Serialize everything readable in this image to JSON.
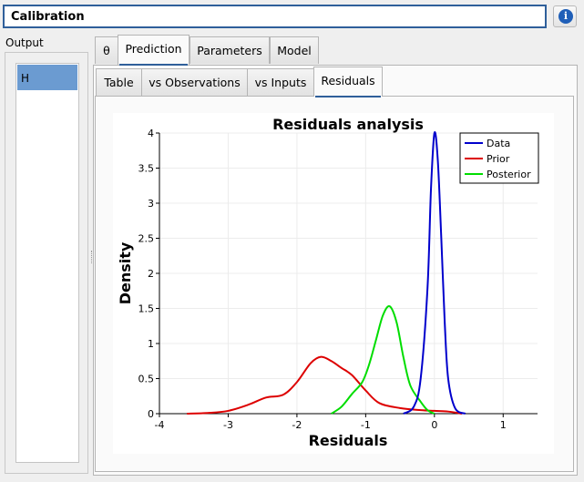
{
  "header": {
    "title": "Calibration",
    "info_icon": "info-icon",
    "info_glyph": "i"
  },
  "output": {
    "label": "Output",
    "items": [
      "H"
    ]
  },
  "top_tabs": [
    "θ",
    "Prediction",
    "Parameters",
    "Model"
  ],
  "sub_tabs": [
    "Table",
    "vs Observations",
    "vs Inputs",
    "Residuals"
  ],
  "chart_data": {
    "type": "line",
    "title": "Residuals analysis",
    "xlabel": "Residuals",
    "ylabel": "Density",
    "xlim": [
      -4,
      1.5
    ],
    "ylim": [
      0,
      4
    ],
    "x_ticks": [
      "-4",
      "-3",
      "-2",
      "-1",
      "0",
      "1"
    ],
    "y_ticks": [
      "0",
      "0.5",
      "1",
      "1.5",
      "2",
      "2.5",
      "3",
      "3.5",
      "4"
    ],
    "grid": true,
    "legend_position": "top-right",
    "series": [
      {
        "name": "Data",
        "color": "#0000cc",
        "x": [
          -0.45,
          -0.3,
          -0.2,
          -0.1,
          -0.05,
          0.0,
          0.05,
          0.1,
          0.15,
          0.2,
          0.3,
          0.45
        ],
        "y": [
          0.0,
          0.1,
          0.5,
          1.8,
          3.2,
          4.0,
          3.6,
          2.5,
          1.3,
          0.5,
          0.08,
          0.0
        ]
      },
      {
        "name": "Prior",
        "color": "#dd0000",
        "x": [
          -3.6,
          -3.3,
          -3.0,
          -2.7,
          -2.45,
          -2.2,
          -2.0,
          -1.8,
          -1.65,
          -1.5,
          -1.35,
          -1.2,
          -1.0,
          -0.8,
          -0.5,
          -0.2,
          0.0,
          0.2,
          0.4
        ],
        "y": [
          0.0,
          0.01,
          0.04,
          0.13,
          0.23,
          0.27,
          0.45,
          0.72,
          0.81,
          0.75,
          0.65,
          0.55,
          0.33,
          0.15,
          0.08,
          0.05,
          0.04,
          0.03,
          0.0
        ]
      },
      {
        "name": "Posterior",
        "color": "#00dd00",
        "x": [
          -1.5,
          -1.35,
          -1.2,
          -1.05,
          -0.95,
          -0.85,
          -0.75,
          -0.65,
          -0.55,
          -0.45,
          -0.35,
          -0.2,
          -0.1,
          0.0
        ],
        "y": [
          0.0,
          0.1,
          0.28,
          0.45,
          0.7,
          1.05,
          1.4,
          1.53,
          1.3,
          0.8,
          0.4,
          0.17,
          0.05,
          0.0
        ]
      }
    ]
  }
}
